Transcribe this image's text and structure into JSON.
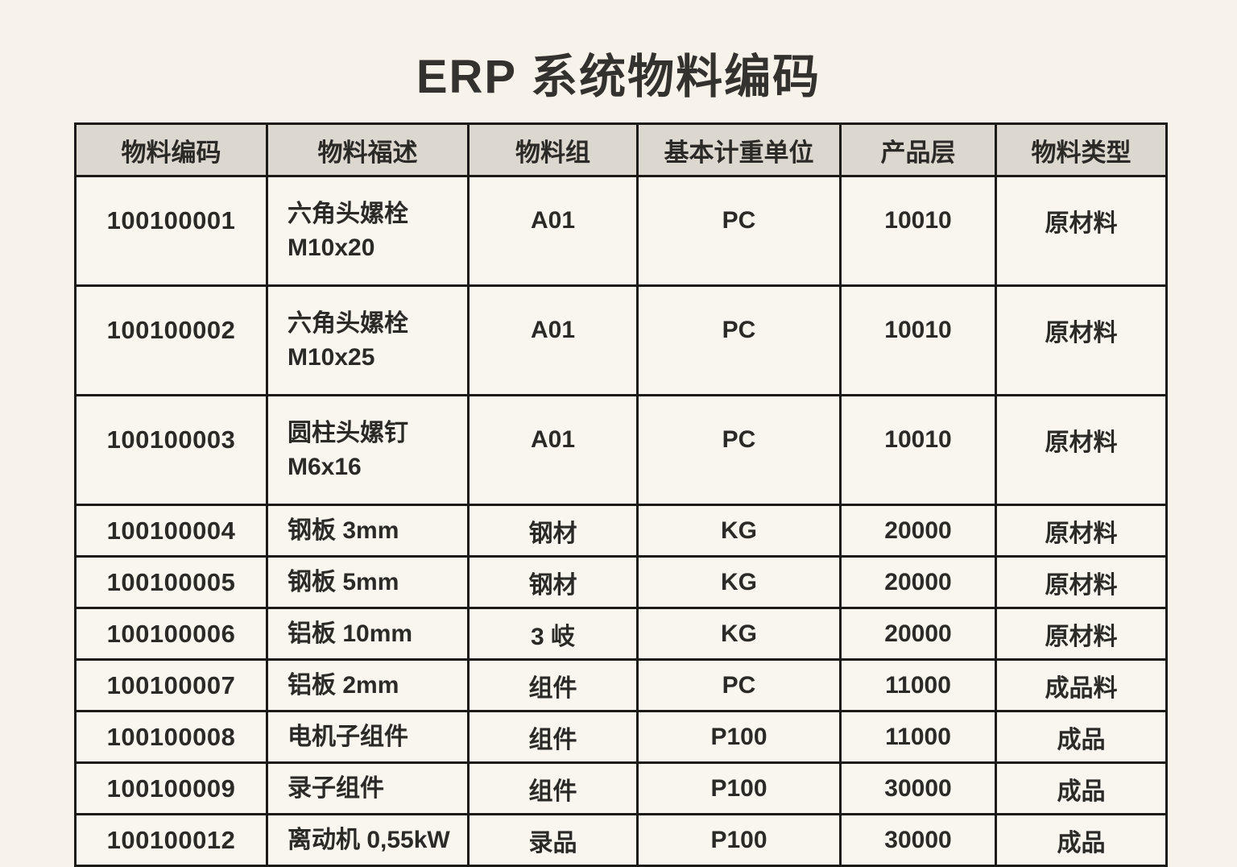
{
  "title": "ERP 系统物料编码",
  "table": {
    "headers": {
      "code": "物料编码",
      "description": "物料福述",
      "group": "物料组",
      "uom": "基本计重单位",
      "level": "产品层",
      "type": "物料类型"
    },
    "rows": [
      {
        "code": "100100001",
        "desc_lines": [
          "六角头嫘栓",
          "M10x20"
        ],
        "group": "A01",
        "uom": "PC",
        "level": "10010",
        "type": "原材料"
      },
      {
        "code": "100100002",
        "desc_lines": [
          "六角头嫘栓",
          "M10x25"
        ],
        "group": "A01",
        "uom": "PC",
        "level": "10010",
        "type": "原材料"
      },
      {
        "code": "100100003",
        "desc_lines": [
          "圆柱头嫘钉",
          "M6x16"
        ],
        "group": "A01",
        "uom": "PC",
        "level": "10010",
        "type": "原材料"
      },
      {
        "code": "100100004",
        "desc_lines": [
          "钢板 3mm"
        ],
        "group": "钢材",
        "uom": "KG",
        "level": "20000",
        "type": "原材料"
      },
      {
        "code": "100100005",
        "desc_lines": [
          "钢板 5mm"
        ],
        "group": "钢材",
        "uom": "KG",
        "level": "20000",
        "type": "原材料"
      },
      {
        "code": "100100006",
        "desc_lines": [
          "铝板 10mm"
        ],
        "group": "3 岐",
        "uom": "KG",
        "level": "20000",
        "type": "原材料"
      },
      {
        "code": "100100007",
        "desc_lines": [
          "铝板 2mm"
        ],
        "group": "组件",
        "uom": "PC",
        "level": "11000",
        "type": "成品料"
      },
      {
        "code": "100100008",
        "desc_lines": [
          "电机子组件"
        ],
        "group": "组件",
        "uom": "P100",
        "level": "11000",
        "type": "成品"
      },
      {
        "code": "100100009",
        "desc_lines": [
          "录子组件"
        ],
        "group": "组件",
        "uom": "P100",
        "level": "30000",
        "type": "成品"
      },
      {
        "code": "100100012",
        "desc_lines": [
          "离动机 0,55kW"
        ],
        "group": "录品",
        "uom": "P100",
        "level": "30000",
        "type": "成品"
      }
    ]
  },
  "colors": {
    "page_background": "#f7f3ea",
    "header_background": "#dcd8d0",
    "cell_background": "#f9f6ef",
    "border": "#1d1b18",
    "text": "#2b2a27"
  }
}
